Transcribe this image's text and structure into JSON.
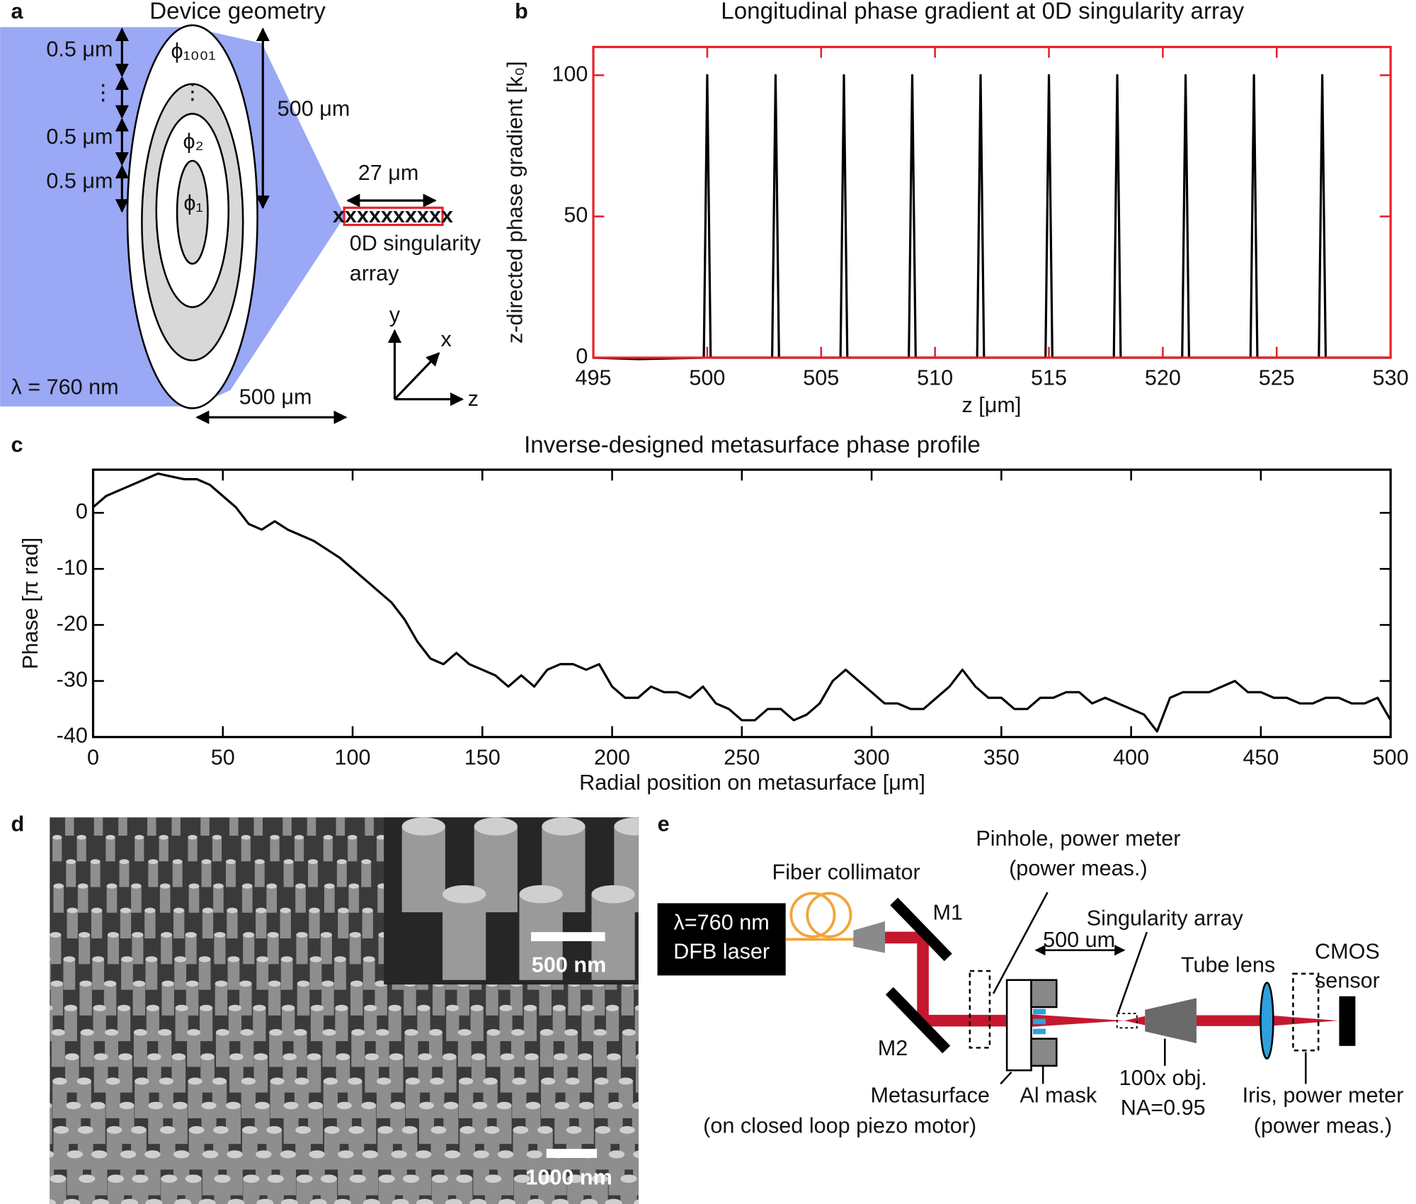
{
  "panel_labels": [
    "a",
    "b",
    "c",
    "d",
    "e"
  ],
  "panel_a": {
    "title": "Device geometry",
    "spacing_label": "0.5 μm",
    "ellipsis": "⋮",
    "phase_labels": [
      "ϕ₁₀₀₁",
      "ϕ₂",
      "ϕ₁"
    ],
    "radius_label": "500 μm",
    "array_length": "27 μm",
    "array_marks": "xxxxxxxxxx",
    "array_label": [
      "0D singularity",
      "array"
    ],
    "axes": [
      "y",
      "x",
      "z"
    ],
    "wavelength": "λ = 760 nm",
    "focal_label": "500 μm"
  },
  "chart_data": [
    {
      "type": "line",
      "title": "Longitudinal phase gradient at 0D singularity array",
      "xlabel": "z [μm]",
      "ylabel": "z-directed phase gradient [k₀]",
      "x": [
        495,
        497,
        499.85,
        500,
        500.15,
        502.85,
        503,
        503.15,
        505.85,
        506,
        506.15,
        508.85,
        509,
        509.15,
        511.85,
        512,
        512.15,
        514.85,
        515,
        515.15,
        517.85,
        518,
        518.15,
        520.85,
        521,
        521.15,
        523.85,
        524,
        524.15,
        526.85,
        527,
        527.15,
        530
      ],
      "values": [
        0,
        -0.5,
        0,
        100,
        0,
        0,
        100,
        0,
        0,
        100,
        0,
        0,
        100,
        0,
        0,
        100,
        0,
        0,
        100,
        0,
        0,
        100,
        0,
        0,
        100,
        0,
        0,
        100,
        0,
        0,
        100,
        0,
        0
      ],
      "color": "#000000",
      "frame_color": "#e8202a",
      "xlim": [
        495,
        530
      ],
      "ylim": [
        0,
        110
      ],
      "xticks": [
        495,
        500,
        505,
        510,
        515,
        520,
        525,
        530
      ],
      "yticks": [
        0,
        50,
        100
      ],
      "grid": false
    },
    {
      "type": "line",
      "title": "Inverse-designed metasurface phase profile",
      "xlabel": "Radial position on metasurface [μm]",
      "ylabel": "Phase [π rad]",
      "x": [
        0,
        5,
        10,
        15,
        20,
        25,
        30,
        35,
        40,
        45,
        50,
        55,
        60,
        65,
        70,
        75,
        80,
        85,
        90,
        95,
        100,
        105,
        110,
        115,
        120,
        125,
        130,
        135,
        140,
        145,
        150,
        155,
        160,
        165,
        170,
        175,
        180,
        185,
        190,
        195,
        200,
        205,
        210,
        215,
        220,
        225,
        230,
        235,
        240,
        245,
        250,
        255,
        260,
        265,
        270,
        275,
        280,
        285,
        290,
        295,
        300,
        305,
        310,
        315,
        320,
        325,
        330,
        335,
        340,
        345,
        350,
        355,
        360,
        365,
        370,
        375,
        380,
        385,
        390,
        395,
        400,
        405,
        410,
        415,
        420,
        425,
        430,
        435,
        440,
        445,
        450,
        455,
        460,
        465,
        470,
        475,
        480,
        485,
        490,
        495,
        500
      ],
      "values": [
        1,
        3,
        4,
        5,
        6,
        7,
        6.5,
        6,
        6,
        5,
        3,
        1,
        -2,
        -3,
        -1.5,
        -3,
        -4,
        -5,
        -6.5,
        -8,
        -10,
        -12,
        -14,
        -16,
        -19,
        -23,
        -26,
        -27,
        -25,
        -27,
        -28,
        -29,
        -31,
        -29,
        -31,
        -28,
        -27,
        -27,
        -28,
        -27,
        -31,
        -33,
        -33,
        -31,
        -32,
        -32,
        -33,
        -31,
        -34,
        -35,
        -37,
        -37,
        -35,
        -35,
        -37,
        -36,
        -34,
        -30,
        -28,
        -30,
        -32,
        -34,
        -34,
        -35,
        -35,
        -33,
        -31,
        -28,
        -31,
        -33,
        -33,
        -35,
        -35,
        -33,
        -33,
        -32,
        -32,
        -34,
        -33,
        -34,
        -35,
        -36,
        -39,
        -33,
        -32,
        -32,
        -32,
        -31,
        -30,
        -32,
        -32,
        -33,
        -33,
        -34,
        -34,
        -33,
        -33,
        -34,
        -34,
        -33,
        -37
      ],
      "color": "#000000",
      "frame_color": "#000000",
      "xlim": [
        0,
        500
      ],
      "ylim": [
        -40,
        7.7
      ],
      "xticks": [
        0,
        50,
        100,
        150,
        200,
        250,
        300,
        350,
        400,
        450,
        500
      ],
      "yticks": [
        -40,
        -30,
        -20,
        -10,
        0
      ],
      "grid": false
    }
  ],
  "panel_d": {
    "inset_scale": "500 nm",
    "main_scale": "1000 nm"
  },
  "panel_e": {
    "laser": [
      "λ=760 nm",
      "DFB laser"
    ],
    "collimator": "Fiber collimator",
    "mirrors": [
      "M1",
      "M2"
    ],
    "pinhole": [
      "Pinhole, power meter",
      "(power meas.)"
    ],
    "distance": "500 um",
    "singularity": "Singularity array",
    "tube_lens": "Tube lens",
    "sensor": [
      "CMOS",
      "sensor"
    ],
    "metasurface": [
      "Metasurface",
      "(on closed loop piezo motor)"
    ],
    "mask": "Al mask",
    "objective": [
      "100x obj.",
      "NA=0.95"
    ],
    "iris": [
      "Iris, power meter",
      "(power meas.)"
    ]
  }
}
